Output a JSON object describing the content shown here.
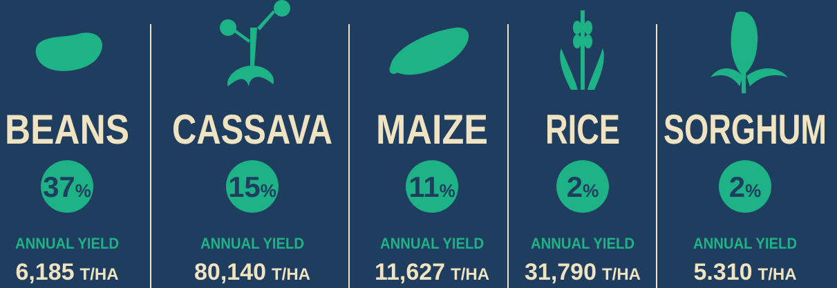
{
  "crops": [
    {
      "name": "BEANS",
      "percent": "37",
      "percent_sign": "%",
      "yield_label": "ANNUAL YIELD",
      "yield": "6,185",
      "unit": "T/HA"
    },
    {
      "name": "CASSAVA",
      "percent": "15",
      "percent_sign": "%",
      "yield_label": "ANNUAL YIELD",
      "yield": "80,140",
      "unit": "T/HA"
    },
    {
      "name": "MAIZE",
      "percent": "11",
      "percent_sign": "%",
      "yield_label": "ANNUAL YIELD",
      "yield": "11,627",
      "unit": "T/HA"
    },
    {
      "name": "RICE",
      "percent": "2",
      "percent_sign": "%",
      "yield_label": "ANNUAL YIELD",
      "yield": "31,790",
      "unit": "T/HA"
    },
    {
      "name": "SORGHUM",
      "percent": "2",
      "percent_sign": "%",
      "yield_label": "ANNUAL YIELD",
      "yield": "5.310",
      "unit": "T/HA"
    }
  ]
}
